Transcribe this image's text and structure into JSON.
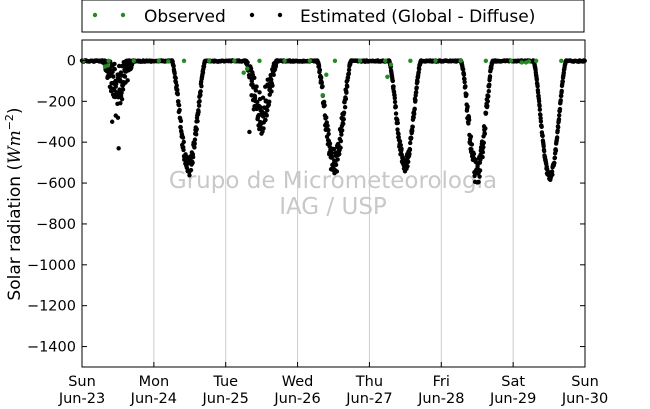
{
  "chart_data": {
    "type": "scatter",
    "ylabel": "Solar radiation (Wm⁻²)",
    "ylabel_main": "Solar radiation (",
    "ylabel_unit": "Wm",
    "ylabel_exp": "−2",
    "ylabel_close": ")",
    "ylim": [
      -1500,
      100
    ],
    "yticks": [
      0,
      -200,
      -400,
      -600,
      -800,
      -1000,
      -1200,
      -1400
    ],
    "xlim": [
      0,
      7
    ],
    "xticks": [
      {
        "x": 0,
        "day": "Sun",
        "date": "Jun-23"
      },
      {
        "x": 1,
        "day": "Mon",
        "date": "Jun-24"
      },
      {
        "x": 2,
        "day": "Tue",
        "date": "Jun-25"
      },
      {
        "x": 3,
        "day": "Wed",
        "date": "Jun-26"
      },
      {
        "x": 4,
        "day": "Thu",
        "date": "Jun-27"
      },
      {
        "x": 5,
        "day": "Fri",
        "date": "Jun-28"
      },
      {
        "x": 6,
        "day": "Sat",
        "date": "Jun-29"
      },
      {
        "x": 7,
        "day": "Sun",
        "date": "Jun-30"
      }
    ],
    "grid": "vertical",
    "legend_position": "top",
    "watermark": [
      "Grupo de Micrometeorologia",
      "IAG / USP"
    ],
    "series": [
      {
        "name": "Observed",
        "color": "#228b22",
        "points": [
          [
            0.32,
            -30
          ],
          [
            0.36,
            -25
          ],
          [
            1.2,
            -5
          ],
          [
            2.25,
            -60
          ],
          [
            2.3,
            -40
          ],
          [
            3.35,
            -170
          ],
          [
            3.4,
            -70
          ],
          [
            4.25,
            -80
          ],
          [
            4.3,
            -20
          ],
          [
            6.12,
            -10
          ],
          [
            6.18,
            -10
          ],
          [
            6.22,
            -5
          ]
        ]
      },
      {
        "name": "Estimated (Global - Diffuse)",
        "color": "#000000",
        "daily_curves": [
          {
            "day": 0,
            "start": 0.28,
            "end": 0.72,
            "peak": -120,
            "scatter": 200,
            "outliers": [
              [
                0.42,
                -300
              ],
              [
                0.45,
                -170
              ],
              [
                0.47,
                -270
              ],
              [
                0.51,
                -430
              ],
              [
                0.5,
                -280
              ],
              [
                0.44,
                -110
              ]
            ]
          },
          {
            "day": 1,
            "start": 1.25,
            "end": 1.72,
            "peak": -520,
            "scatter": 90
          },
          {
            "day": 2,
            "start": 2.27,
            "end": 2.72,
            "peak": -250,
            "scatter": 220,
            "outliers": [
              [
                2.33,
                -350
              ]
            ]
          },
          {
            "day": 3,
            "start": 3.27,
            "end": 3.75,
            "peak": -500,
            "scatter": 140
          },
          {
            "day": 4,
            "start": 4.27,
            "end": 4.72,
            "peak": -510,
            "scatter": 70
          },
          {
            "day": 5,
            "start": 5.27,
            "end": 5.72,
            "peak": -550,
            "scatter": 120
          },
          {
            "day": 6,
            "start": 6.28,
            "end": 6.74,
            "peak": -570,
            "scatter": 35
          }
        ]
      }
    ]
  },
  "legend": {
    "observed_label": "Observed",
    "estimated_label": "Estimated (Global - Diffuse)"
  }
}
